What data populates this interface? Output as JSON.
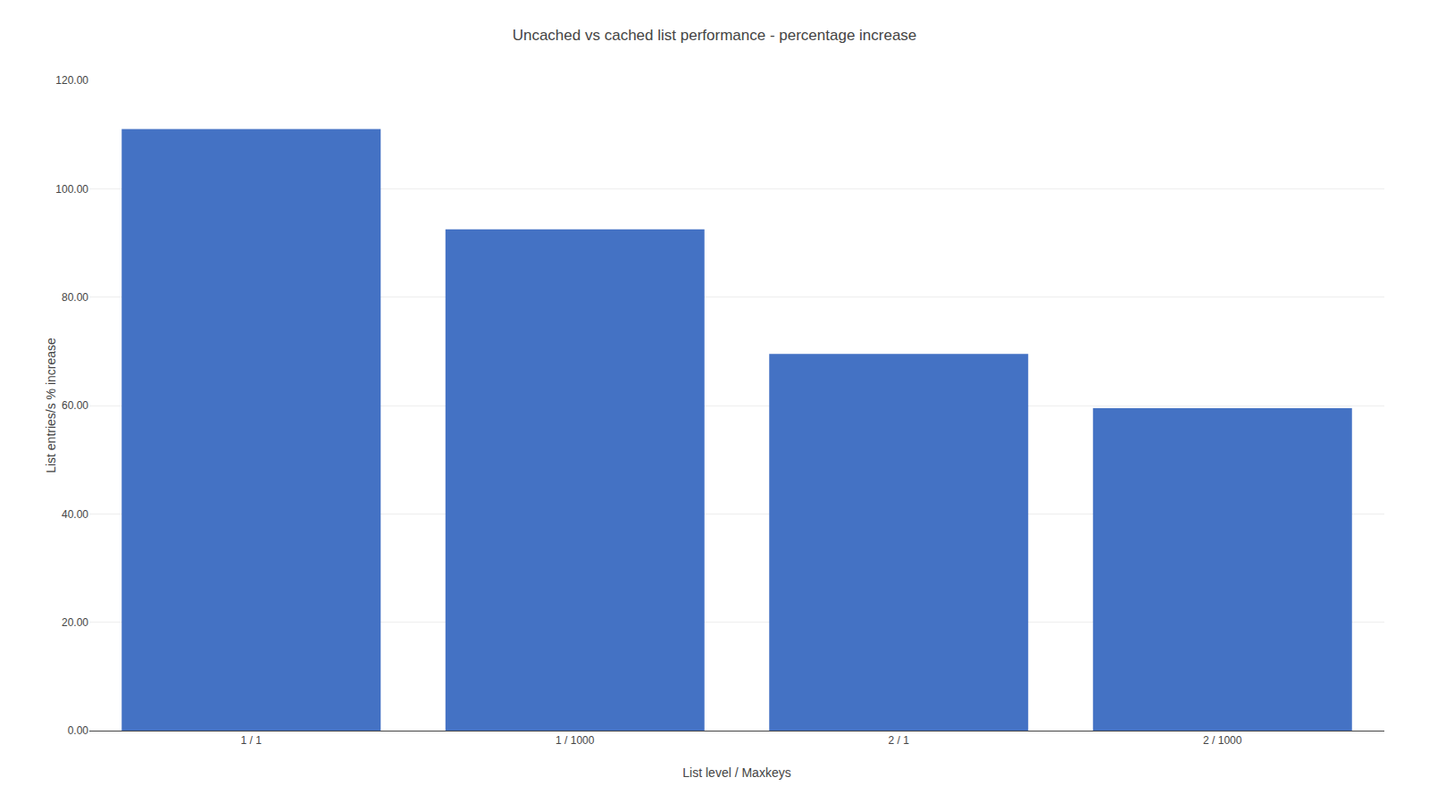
{
  "chart_data": {
    "type": "bar",
    "title": "Uncached vs cached list performance - percentage increase",
    "xlabel": "List level / Maxkeys",
    "ylabel": "List entries/s % increase",
    "categories": [
      "1 / 1",
      "1 / 1000",
      "2 / 1",
      "2 / 1000"
    ],
    "values": [
      111.0,
      92.5,
      69.5,
      59.5
    ],
    "color": "#4472C4",
    "ylim": [
      0,
      120
    ],
    "yticks": [
      {
        "value": 0,
        "label": "0.00"
      },
      {
        "value": 20,
        "label": "20.00"
      },
      {
        "value": 40,
        "label": "40.00"
      },
      {
        "value": 60,
        "label": "60.00"
      },
      {
        "value": 80,
        "label": "80.00"
      },
      {
        "value": 100,
        "label": "100.00"
      },
      {
        "value": 120,
        "label": "120.00"
      }
    ],
    "grid": true
  }
}
